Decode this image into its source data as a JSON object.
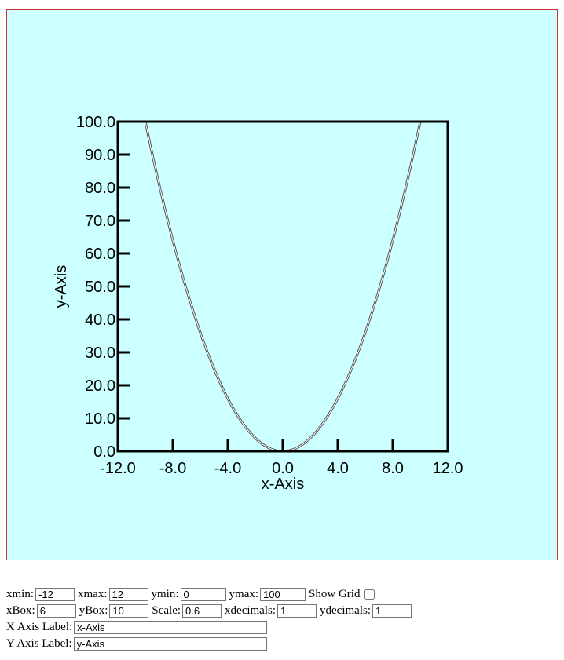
{
  "plot": {
    "chart_data": {
      "type": "line",
      "xlabel": "x-Axis",
      "ylabel": "y-Axis",
      "xlim": [
        -12,
        12
      ],
      "ylim": [
        0,
        100
      ],
      "x_ticks": [
        "-12.0",
        "-8.0",
        "-4.0",
        "0.0",
        "4.0",
        "8.0",
        "12.0"
      ],
      "y_ticks": [
        "0.0",
        "10.0",
        "20.0",
        "30.0",
        "40.0",
        "50.0",
        "60.0",
        "70.0",
        "80.0",
        "90.0",
        "100.0"
      ],
      "grid": false,
      "series": [
        {
          "x": [
            -10,
            -9,
            -8,
            -7,
            -6,
            -5,
            -4,
            -3,
            -2,
            -1,
            0,
            1,
            2,
            3,
            4,
            5,
            6,
            7,
            8,
            9,
            10
          ],
          "values": [
            100,
            81,
            64,
            49,
            36,
            25,
            16,
            9,
            4,
            1,
            0,
            1,
            4,
            9,
            16,
            25,
            36,
            49,
            64,
            81,
            100
          ]
        }
      ]
    }
  },
  "controls": {
    "xmin_label": "xmin:",
    "xmin_value": "-12",
    "xmax_label": "xmax:",
    "xmax_value": "12",
    "ymin_label": "ymin:",
    "ymin_value": "0",
    "ymax_label": "ymax:",
    "ymax_value": "100",
    "grid_label": "Show Grid",
    "grid_checked": false,
    "xbox_label": "xBox:",
    "xbox_value": "6",
    "ybox_label": "yBox:",
    "ybox_value": "10",
    "scale_label": "Scale:",
    "scale_value": "0.6",
    "xdecimals_label": "xdecimals:",
    "xdecimals_value": "1",
    "ydecimals_label": "ydecimals:",
    "ydecimals_value": "1",
    "xaxis_label": "X Axis Label:",
    "xaxis_value": "x-Axis",
    "yaxis_label": "Y Axis Label:",
    "yaxis_value": "y-Axis"
  }
}
